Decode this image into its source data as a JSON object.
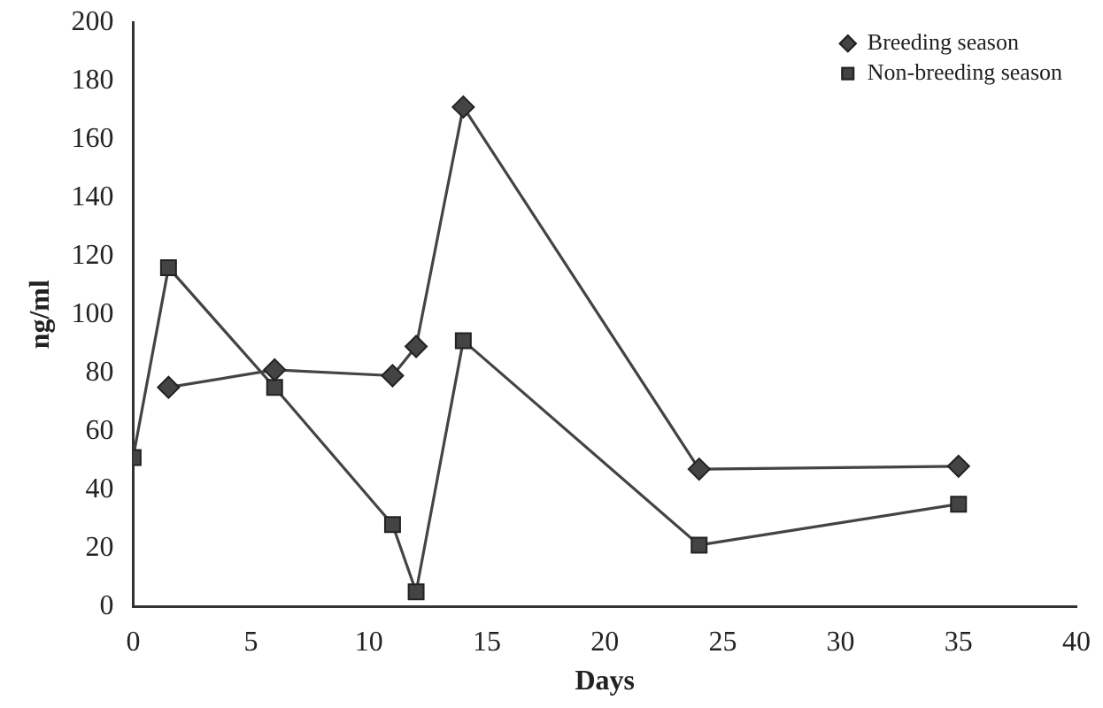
{
  "chart_data": {
    "type": "line",
    "xlabel": "Days",
    "ylabel": "ng/ml",
    "xlim": [
      0,
      40
    ],
    "xticks": [
      0,
      5,
      10,
      15,
      20,
      25,
      30,
      35,
      40
    ],
    "ylim": [
      0,
      200
    ],
    "yticks": [
      0,
      20,
      40,
      60,
      80,
      100,
      120,
      140,
      160,
      180,
      200
    ],
    "grid": false,
    "legend": "top right",
    "line_style": "solid",
    "series": [
      {
        "name": "Breeding season",
        "color": "#444444",
        "marker": "diamond",
        "x": [
          1.5,
          6,
          11,
          12,
          14,
          24,
          35
        ],
        "values": [
          75,
          81,
          79,
          89,
          171,
          47,
          48
        ]
      },
      {
        "name": "Non-breeding season",
        "color": "#444444",
        "marker": "square",
        "x": [
          0,
          1.5,
          6,
          11,
          12,
          14,
          24,
          35
        ],
        "values": [
          51,
          116,
          75,
          28,
          5,
          91,
          21,
          35
        ]
      }
    ]
  }
}
